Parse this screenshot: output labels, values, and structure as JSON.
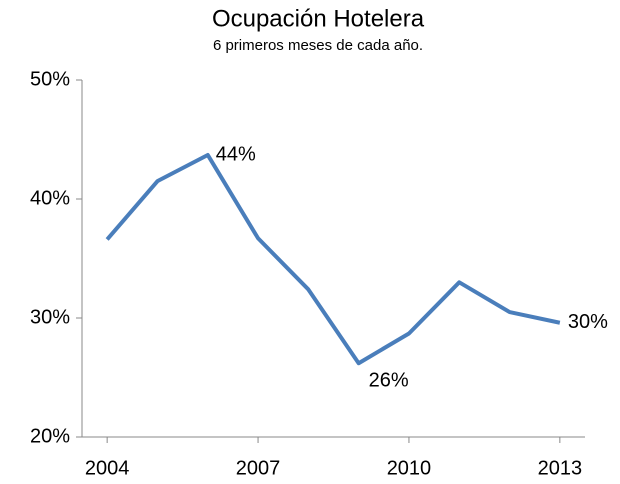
{
  "chart_data": {
    "type": "line",
    "title": "Ocupación Hotelera",
    "subtitle": "6 primeros meses de cada año.",
    "x": [
      2004,
      2005,
      2006,
      2007,
      2008,
      2009,
      2010,
      2011,
      2012,
      2013
    ],
    "series": [
      {
        "color": "#4a7ebb",
        "values": [
          36.6,
          41.5,
          43.7,
          36.7,
          32.4,
          26.2,
          28.7,
          33.0,
          30.5,
          29.6
        ],
        "value_labels": [
          null,
          null,
          "44%",
          null,
          null,
          "26%",
          null,
          null,
          null,
          "30%"
        ]
      }
    ],
    "xlim": [
      2003.5,
      2013.5
    ],
    "xticks": [
      2004,
      2007,
      2010,
      2013
    ],
    "ylim": [
      20,
      50
    ],
    "yticks": [
      {
        "value": 20,
        "label": "20%"
      },
      {
        "value": 30,
        "label": "30%"
      },
      {
        "value": 40,
        "label": "40%"
      },
      {
        "value": 50,
        "label": "50%"
      }
    ]
  }
}
